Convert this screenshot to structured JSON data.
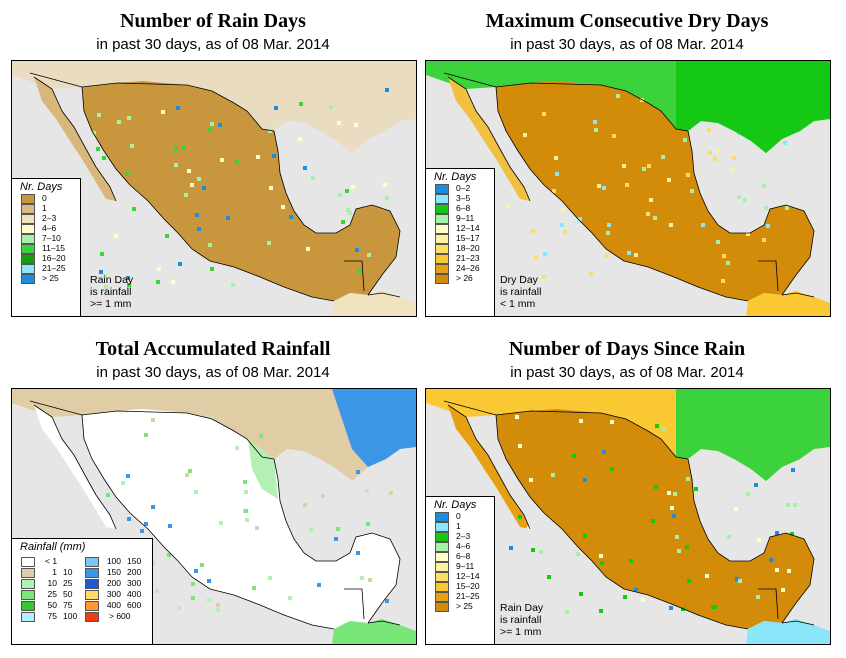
{
  "colors": {
    "ocean": "#e6e6e6",
    "border": "#000000"
  },
  "panels": [
    {
      "title": "Number of Rain Days",
      "subtitle": "in past 30 days, as of  08 Mar. 2014",
      "legend_title": "Nr. Days",
      "legend": [
        {
          "label": "0",
          "color": "#c8963c"
        },
        {
          "label": "1",
          "color": "#d9bb8a"
        },
        {
          "label": "2–3",
          "color": "#f1e3bf"
        },
        {
          "label": "4–6",
          "color": "#ffffc8"
        },
        {
          "label": "7–10",
          "color": "#a8f0a8"
        },
        {
          "label": "11–15",
          "color": "#3cd23c"
        },
        {
          "label": "16–20",
          "color": "#14a014"
        },
        {
          "label": "21–25",
          "color": "#8ce6fa"
        },
        {
          "label": "> 25",
          "color": "#1e8cdc"
        }
      ],
      "note": [
        "Rain Day",
        "is rainfall",
        ">= 1 mm"
      ]
    },
    {
      "title": "Maximum Consecutive Dry Days",
      "subtitle": "in past 30 days, as of  08 Mar. 2014",
      "legend_title": "Nr. Days",
      "legend": [
        {
          "label": "0–2",
          "color": "#1e8cdc"
        },
        {
          "label": "3–5",
          "color": "#8ce6fa"
        },
        {
          "label": "6–8",
          "color": "#14c814"
        },
        {
          "label": "9–11",
          "color": "#a8f0a8"
        },
        {
          "label": "12–14",
          "color": "#ffffc8"
        },
        {
          "label": "15–17",
          "color": "#fff0a0"
        },
        {
          "label": "18–20",
          "color": "#ffdc64"
        },
        {
          "label": "21–23",
          "color": "#fac832"
        },
        {
          "label": "24–26",
          "color": "#e6a014"
        },
        {
          "label": "> 26",
          "color": "#d28c0a"
        }
      ],
      "note": [
        "Dry Day",
        "is rainfall",
        "< 1 mm"
      ]
    },
    {
      "title": "Total Accumulated Rainfall",
      "subtitle": "in past 30 days, as of  08 Mar. 2014",
      "legend_title": "Rainfall (mm)",
      "legend_rainfall": [
        {
          "a": "",
          "b": "< 1",
          "color": "#ffffff"
        },
        {
          "a": "1",
          "b": "10",
          "color": "#e1cda5"
        },
        {
          "a": "10",
          "b": "25",
          "color": "#b4f0b4"
        },
        {
          "a": "25",
          "b": "50",
          "color": "#78e678"
        },
        {
          "a": "50",
          "b": "75",
          "color": "#32c832"
        },
        {
          "a": "75",
          "b": "100",
          "color": "#b4f0ff"
        },
        {
          "a": "100",
          "b": "150",
          "color": "#78c8f0"
        },
        {
          "a": "150",
          "b": "200",
          "color": "#3c96e6"
        },
        {
          "a": "200",
          "b": "300",
          "color": "#1e5ad2"
        },
        {
          "a": "300",
          "b": "400",
          "color": "#ffdc64"
        },
        {
          "a": "400",
          "b": "600",
          "color": "#ff9632"
        },
        {
          "a": "",
          "b": "> 600",
          "color": "#f03c14"
        }
      ]
    },
    {
      "title": "Number of Days Since Rain",
      "subtitle": "in past 30 days, as of  08 Mar. 2014",
      "legend_title": "Nr. Days",
      "legend": [
        {
          "label": "0",
          "color": "#1e8cdc"
        },
        {
          "label": "1",
          "color": "#8ce6fa"
        },
        {
          "label": "2–3",
          "color": "#14c814"
        },
        {
          "label": "4–6",
          "color": "#a8f0a8"
        },
        {
          "label": "6–8",
          "color": "#ffffc8"
        },
        {
          "label": "9–11",
          "color": "#fff0a0"
        },
        {
          "label": "12–14",
          "color": "#ffdc64"
        },
        {
          "label": "15–20",
          "color": "#fac832"
        },
        {
          "label": "21–25",
          "color": "#e6a014"
        },
        {
          "label": "> 25",
          "color": "#d28c0a"
        }
      ],
      "note": [
        "Rain Day",
        "is rainfall",
        ">= 1 mm"
      ]
    }
  ]
}
